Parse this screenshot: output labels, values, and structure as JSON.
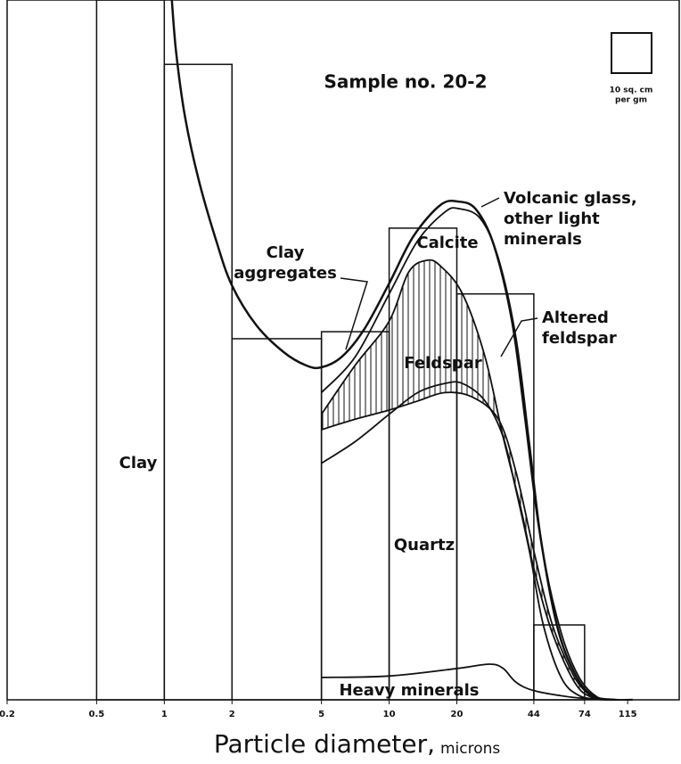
{
  "chart_data": {
    "type": "histogram",
    "title": "Sample no. 20-2",
    "scale_label": [
      "10 sq. cm",
      "per gm"
    ],
    "x_label": "Particle diameter,",
    "x_unit": "microns",
    "log_x": true,
    "xlim": [
      0.2,
      195
    ],
    "ylim": [
      0,
      100
    ],
    "xticks": [
      0.2,
      0.5,
      1,
      2,
      5,
      10,
      20,
      44,
      74,
      115
    ],
    "bins": [
      0.5,
      1,
      2,
      5,
      10,
      20,
      44,
      74
    ],
    "values": [
      100,
      90.8,
      51.6,
      52.6,
      67.4,
      58,
      10.7
    ],
    "color": "#111111",
    "series": [
      {
        "x": [
          1.08,
          1.13,
          1.235,
          1.417,
          1.702,
          2,
          2.57,
          3.39,
          4.26,
          4.98,
          6.15,
          7.73,
          10,
          12.8,
          16.9,
          20.3,
          24.3,
          29.2,
          35.2,
          40.3,
          46.3,
          55.6,
          66.8,
          80.2,
          101,
          121
        ],
        "y": [
          100,
          92.4,
          83.4,
          74.5,
          65.6,
          59.2,
          53.5,
          49.7,
          47.8,
          47.5,
          49,
          52.9,
          59.5,
          66.2,
          70.7,
          71.2,
          70.1,
          65,
          54.1,
          40.1,
          24.8,
          10.8,
          3.8,
          0.6,
          0,
          0
        ]
      },
      {
        "x": [
          5,
          7.06,
          10,
          13.4,
          17.7,
          20.3,
          25.4,
          30.6,
          36.7,
          42.2,
          48.4,
          58.2,
          70,
          84.2,
          101
        ],
        "y": [
          43.9,
          49,
          58,
          65.6,
          69.7,
          70.2,
          68.8,
          63.1,
          51.6,
          36.3,
          21,
          9.6,
          3.2,
          0.4,
          0
        ]
      },
      {
        "x": [
          5,
          7.06,
          10,
          12.2,
          14.7,
          16.9,
          21.2,
          26.7,
          32.1,
          38.5,
          44.2,
          53.1,
          66.8,
          80.2,
          101
        ],
        "y": [
          40.8,
          47.8,
          54.1,
          61.1,
          62.8,
          62,
          58,
          49,
          37.6,
          27.4,
          18.5,
          9.6,
          2.5,
          0.3,
          0
        ]
      },
      {
        "x": [
          5,
          7.06,
          10,
          13.4,
          17.7,
          23.3,
          30.6,
          36.7,
          44.2,
          53.1,
          66.8,
          80.2
        ],
        "y": [
          38.6,
          40.1,
          41.4,
          42.7,
          43.9,
          43.3,
          40.1,
          32.5,
          21,
          10.8,
          3.2,
          0.3
        ]
      },
      {
        "x": [
          5,
          7.06,
          10,
          13.4,
          17.7,
          21.2,
          26.7,
          32.1,
          36.7,
          42.2,
          48.4,
          58.2,
          70,
          88
        ],
        "y": [
          33.8,
          36.9,
          40.8,
          43.9,
          45.2,
          45.2,
          42.7,
          37.6,
          29.9,
          21,
          10.8,
          3.2,
          0.6,
          0
        ]
      },
      {
        "x": [
          5,
          10,
          20.3,
          27.9,
          32.1,
          36.7,
          44.2,
          63.9,
          92
        ],
        "y": [
          3.2,
          3.4,
          4.5,
          5.1,
          4.5,
          2.5,
          1.3,
          0.4,
          0
        ]
      }
    ],
    "annotations": [
      {
        "lines": [
          "Clay"
        ]
      },
      {
        "lines": [
          "Clay",
          "aggregates"
        ]
      },
      {
        "lines": [
          "Calcite"
        ]
      },
      {
        "lines": [
          "Volcanic glass,",
          "other light",
          "minerals"
        ]
      },
      {
        "lines": [
          "Altered",
          "feldspar"
        ]
      },
      {
        "lines": [
          "Feldspar"
        ]
      },
      {
        "lines": [
          "Quartz"
        ]
      },
      {
        "lines": [
          "Heavy minerals"
        ]
      }
    ]
  }
}
